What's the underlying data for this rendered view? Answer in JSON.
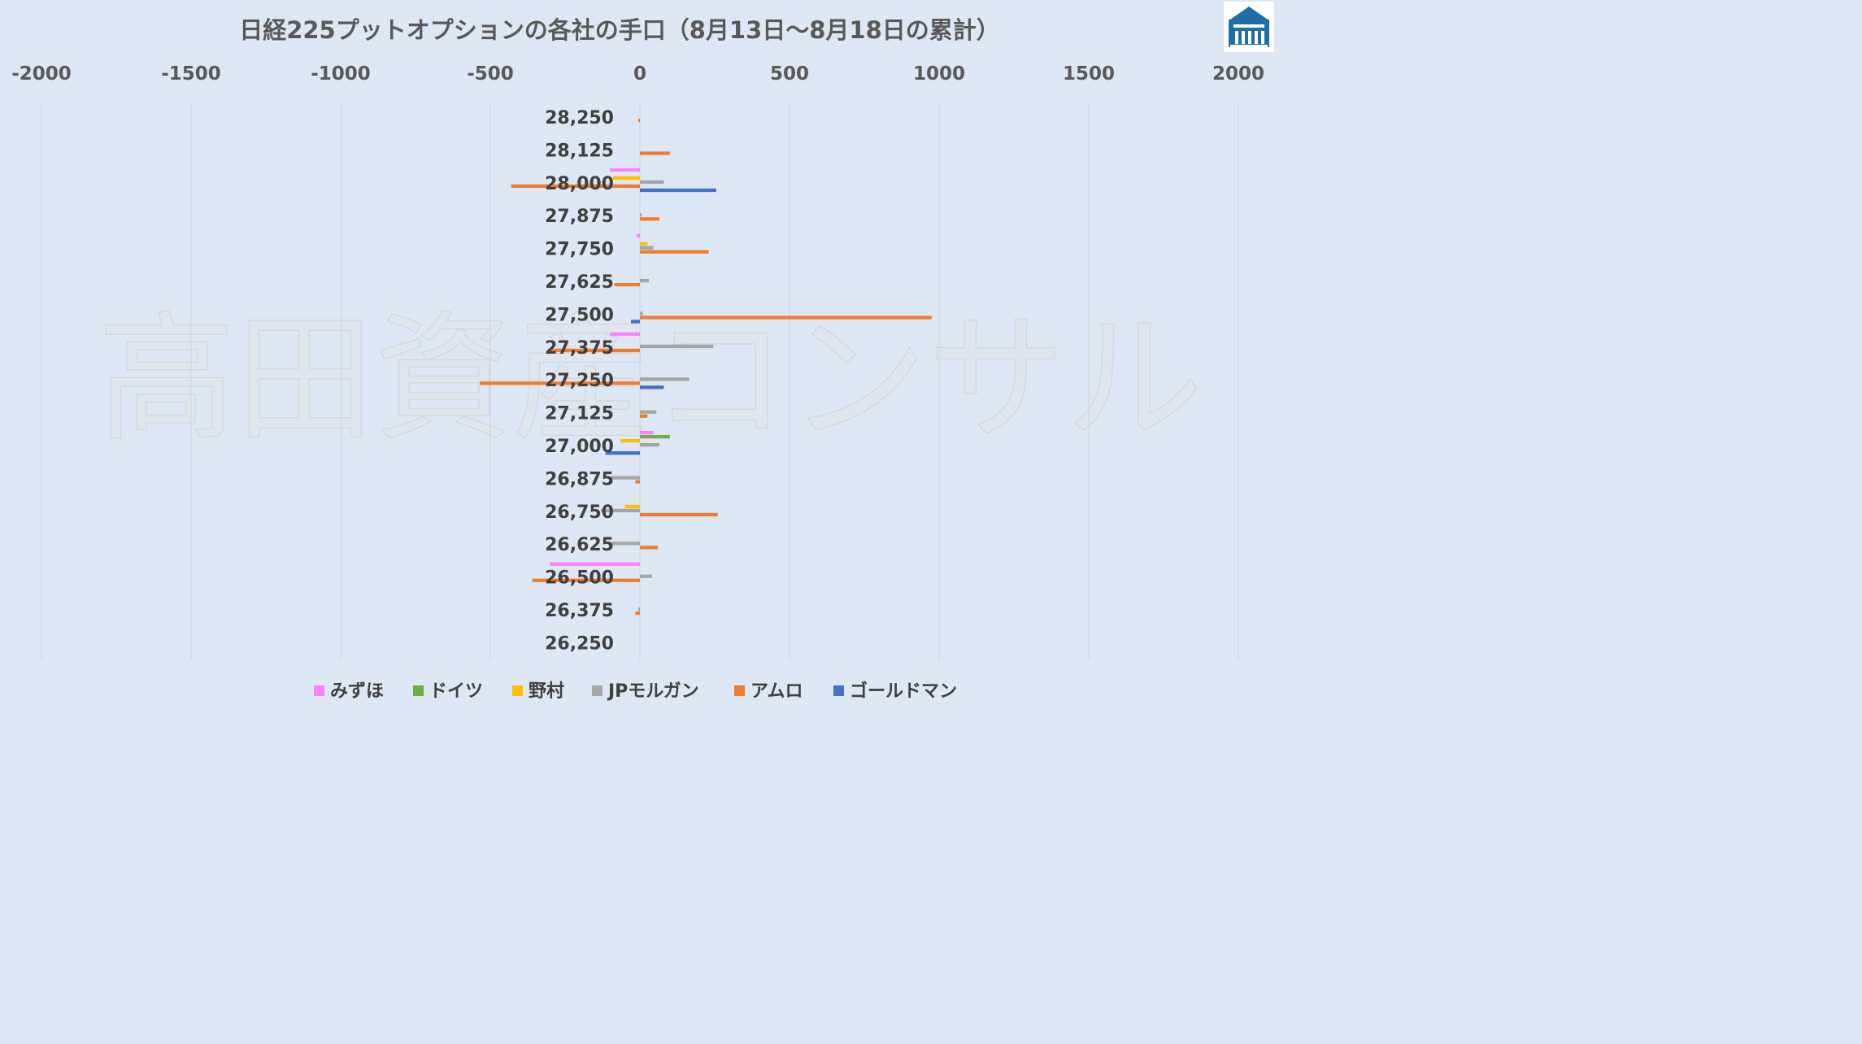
{
  "chart_data": {
    "type": "bar",
    "orientation": "horizontal",
    "title": "日経225プットオプションの各社の手口（8月13日～8月18日の累計）",
    "watermark": "高田資産コンサル",
    "xlim": [
      -2000,
      2000
    ],
    "xticks": [
      "-2000",
      "-1500",
      "-1000",
      "-500",
      "0",
      "500",
      "1000",
      "1500",
      "2000"
    ],
    "xtick_values": [
      -2000,
      -1500,
      -1000,
      -500,
      0,
      500,
      1000,
      1500,
      2000
    ],
    "grid": true,
    "legend_position": "bottom",
    "categories": [
      "28,250",
      "28,125",
      "28,000",
      "27,875",
      "27,750",
      "27,625",
      "27,500",
      "27,375",
      "27,250",
      "27,125",
      "27,000",
      "26,875",
      "26,750",
      "26,625",
      "26,500",
      "26,375",
      "26,250"
    ],
    "series": [
      {
        "name": "みずほ",
        "color": "#ff80ff",
        "values": [
          0,
          0,
          -100,
          0,
          -10,
          0,
          0,
          -100,
          0,
          0,
          45,
          0,
          0,
          0,
          -300,
          0,
          0
        ]
      },
      {
        "name": "ドイツ",
        "color": "#70ad47",
        "values": [
          0,
          0,
          0,
          0,
          0,
          0,
          0,
          0,
          0,
          0,
          100,
          0,
          0,
          0,
          0,
          0,
          0
        ]
      },
      {
        "name": "野村",
        "color": "#ffc000",
        "values": [
          0,
          0,
          -90,
          0,
          25,
          0,
          0,
          0,
          0,
          0,
          -65,
          0,
          -50,
          0,
          0,
          0,
          0
        ]
      },
      {
        "name": "JPモルガン",
        "color": "#a5a5a5",
        "values": [
          0,
          0,
          80,
          5,
          45,
          30,
          10,
          245,
          165,
          55,
          65,
          -95,
          -130,
          -95,
          40,
          -5,
          0
        ]
      },
      {
        "name": "アムロ",
        "color": "#ed7d31",
        "values": [
          -5,
          100,
          -430,
          65,
          230,
          -85,
          975,
          -305,
          -535,
          25,
          0,
          -15,
          260,
          60,
          -360,
          -15,
          0
        ]
      },
      {
        "name": "ゴールドマン",
        "color": "#4472c4",
        "values": [
          0,
          0,
          255,
          0,
          0,
          0,
          -30,
          0,
          80,
          0,
          -115,
          0,
          0,
          0,
          0,
          0,
          0
        ]
      }
    ]
  }
}
